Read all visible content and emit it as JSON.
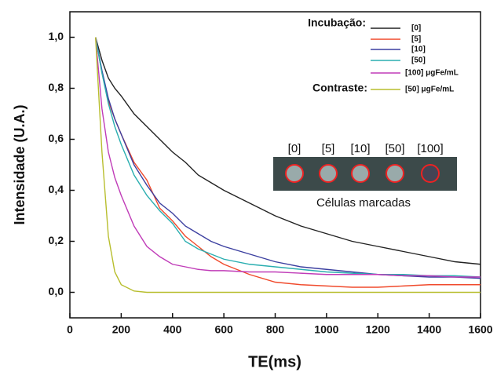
{
  "chart_data": {
    "type": "line",
    "x_label": "TE(ms)",
    "y_label": "Intensidade (U.A.)",
    "x": [
      100,
      125,
      150,
      175,
      200,
      250,
      300,
      350,
      400,
      450,
      500,
      550,
      600,
      700,
      800,
      900,
      1000,
      1100,
      1200,
      1300,
      1400,
      1500,
      1600
    ],
    "series": [
      {
        "name": "[0]",
        "color": "#222222",
        "values": [
          1.0,
          0.91,
          0.84,
          0.8,
          0.77,
          0.7,
          0.65,
          0.6,
          0.55,
          0.51,
          0.46,
          0.43,
          0.4,
          0.35,
          0.3,
          0.26,
          0.23,
          0.2,
          0.18,
          0.16,
          0.14,
          0.12,
          0.11
        ]
      },
      {
        "name": "[5]",
        "color": "#f04a2c",
        "values": [
          1.0,
          0.86,
          0.75,
          0.68,
          0.62,
          0.51,
          0.44,
          0.33,
          0.28,
          0.22,
          0.18,
          0.14,
          0.11,
          0.07,
          0.04,
          0.03,
          0.025,
          0.02,
          0.02,
          0.025,
          0.03,
          0.03,
          0.03
        ]
      },
      {
        "name": "[10]",
        "color": "#3b3fa0",
        "values": [
          1.0,
          0.87,
          0.76,
          0.68,
          0.62,
          0.5,
          0.42,
          0.35,
          0.31,
          0.26,
          0.23,
          0.2,
          0.18,
          0.15,
          0.12,
          0.1,
          0.09,
          0.08,
          0.07,
          0.065,
          0.06,
          0.06,
          0.055
        ]
      },
      {
        "name": "[50]",
        "color": "#2aaeb0",
        "values": [
          1.0,
          0.86,
          0.74,
          0.65,
          0.58,
          0.46,
          0.38,
          0.32,
          0.27,
          0.2,
          0.17,
          0.15,
          0.13,
          0.11,
          0.1,
          0.09,
          0.08,
          0.075,
          0.07,
          0.07,
          0.065,
          0.065,
          0.06
        ]
      },
      {
        "name": "[100] μgFe/mL",
        "color": "#c03cb8",
        "values": [
          1.0,
          0.72,
          0.55,
          0.45,
          0.38,
          0.26,
          0.18,
          0.14,
          0.11,
          0.1,
          0.09,
          0.085,
          0.085,
          0.08,
          0.08,
          0.075,
          0.07,
          0.07,
          0.07,
          0.065,
          0.065,
          0.06,
          0.06
        ]
      },
      {
        "name": "[50] μgFe/mL",
        "color": "#b8be2e",
        "values": [
          1.0,
          0.55,
          0.22,
          0.08,
          0.03,
          0.005,
          0,
          0,
          0,
          0,
          0,
          0,
          0,
          0,
          0,
          0,
          0,
          0,
          0,
          0,
          0,
          0,
          0
        ]
      }
    ],
    "legend_groups": [
      "Incubação:",
      "Contraste:"
    ],
    "xlim": [
      0,
      1600
    ],
    "xticks": [
      0,
      200,
      400,
      600,
      800,
      1000,
      1200,
      1400,
      1600
    ],
    "ylim": [
      -0.1,
      1.1
    ],
    "yticks": [
      {
        "value": 0,
        "label": "0,0"
      },
      {
        "value": 0.2,
        "label": "0,2"
      },
      {
        "value": 0.4,
        "label": "0,4"
      },
      {
        "value": 0.6,
        "label": "0,6"
      },
      {
        "value": 0.8,
        "label": "0,8"
      },
      {
        "value": 1.0,
        "label": "1,0"
      }
    ],
    "inset": {
      "labels": [
        "[0]",
        "[5]",
        "[10]",
        "[50]",
        "[100]"
      ],
      "caption": "Células marcadas"
    }
  }
}
